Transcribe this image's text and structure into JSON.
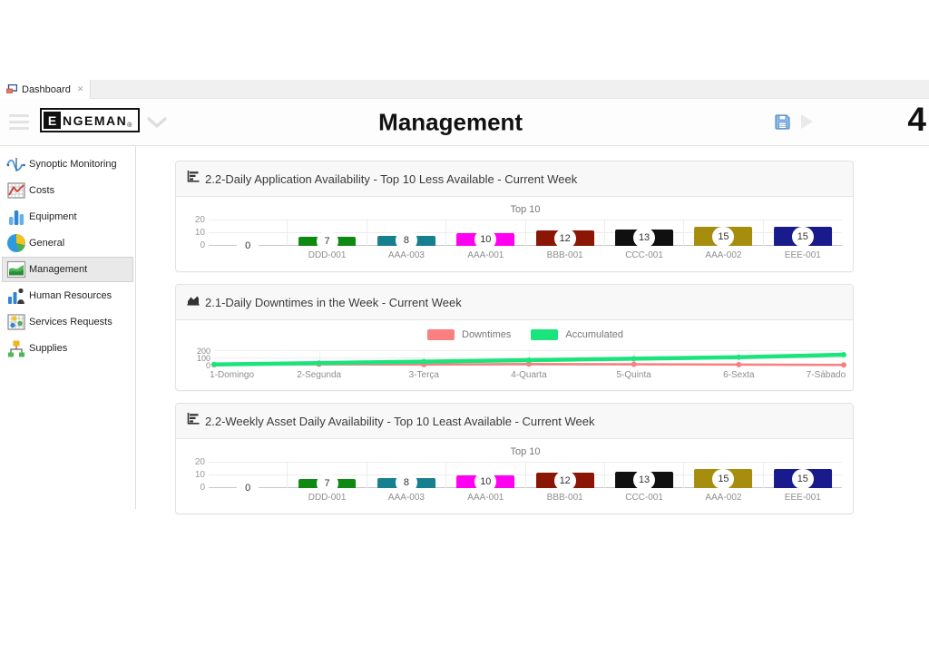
{
  "tab_bar": {
    "tabs": [
      {
        "label": "Dashboard",
        "close_glyph": "✕"
      }
    ]
  },
  "header": {
    "title": "Management",
    "logo": {
      "boxed_letter": "E",
      "rest": "NGEMAN",
      "registered": "®"
    },
    "counter": "4",
    "accent_color": "#7eb3e3"
  },
  "sidebar": {
    "items": [
      {
        "label": "Synoptic Monitoring",
        "icon": "synoptic-monitoring-icon",
        "selected": false
      },
      {
        "label": "Costs",
        "icon": "costs-icon",
        "selected": false
      },
      {
        "label": "Equipment",
        "icon": "equipment-icon",
        "selected": false
      },
      {
        "label": "General",
        "icon": "general-icon",
        "selected": false
      },
      {
        "label": "Management",
        "icon": "management-icon",
        "selected": true
      },
      {
        "label": "Human Resources",
        "icon": "human-resources-icon",
        "selected": false
      },
      {
        "label": "Services Requests",
        "icon": "services-requests-icon",
        "selected": false
      },
      {
        "label": "Supplies",
        "icon": "supplies-icon",
        "selected": false
      }
    ]
  },
  "cards": [
    {
      "title": "2.2-Daily Application Availability - Top 10 Less Available - Current Week",
      "icon": "bar-chart-icon"
    },
    {
      "title": "2.1-Daily Downtimes in the Week - Current Week",
      "icon": "area-chart-icon"
    },
    {
      "title": "2.2-Weekly Asset Daily Availability - Top 10 Least Available - Current Week",
      "icon": "bar-chart-icon"
    }
  ],
  "chart_data": [
    {
      "type": "bar",
      "title": "Top 10",
      "categories": [
        "",
        "DDD-001",
        "AAA-003",
        "AAA-001",
        "BBB-001",
        "CCC-001",
        "AAA-002",
        "EEE-001"
      ],
      "values": [
        0,
        7,
        8,
        10,
        12,
        13,
        15,
        15
      ],
      "colors": [
        "#999999",
        "#0e8a12",
        "#17808f",
        "#ff00f0",
        "#8b1606",
        "#101010",
        "#a68d0e",
        "#191a8c"
      ],
      "ylim": [
        0,
        20
      ],
      "yticks": [
        0,
        10,
        20
      ],
      "grid": true,
      "value_labels": true
    },
    {
      "type": "line",
      "title": "",
      "categories": [
        "1-Domingo",
        "2-Segunda",
        "3-Terça",
        "4-Quarta",
        "5-Quinta",
        "6-Sexta",
        "7-Sábado"
      ],
      "series": [
        {
          "name": "Downtimes",
          "color": "#f88080",
          "values": [
            12,
            18,
            14,
            22,
            18,
            14,
            10
          ]
        },
        {
          "name": "Accumulated",
          "color": "#1ae57d",
          "values": [
            15,
            35,
            55,
            75,
            95,
            115,
            150
          ]
        }
      ],
      "ylim": [
        0,
        200
      ],
      "yticks": [
        0,
        100,
        200
      ],
      "grid": true,
      "legend_position": "top"
    },
    {
      "type": "bar",
      "title": "Top 10",
      "categories": [
        "",
        "DDD-001",
        "AAA-003",
        "AAA-001",
        "BBB-001",
        "CCC-001",
        "AAA-002",
        "EEE-001"
      ],
      "values": [
        0,
        7,
        8,
        10,
        12,
        13,
        15,
        15
      ],
      "colors": [
        "#999999",
        "#0e8a12",
        "#17808f",
        "#ff00f0",
        "#8b1606",
        "#101010",
        "#a68d0e",
        "#191a8c"
      ],
      "ylim": [
        0,
        20
      ],
      "yticks": [
        0,
        10,
        20
      ],
      "grid": true,
      "value_labels": true
    }
  ]
}
